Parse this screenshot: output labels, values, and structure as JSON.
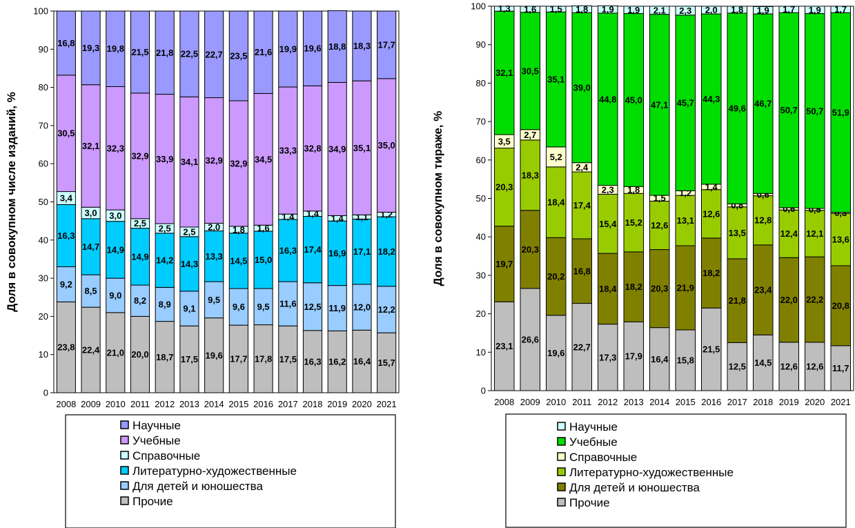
{
  "chart_data": [
    {
      "type": "bar",
      "stacked": true,
      "ylabel": "Доля в совокупном числе изданий, %",
      "ylim": [
        0,
        100
      ],
      "yticks": [
        0,
        10,
        20,
        30,
        40,
        50,
        60,
        70,
        80,
        90,
        100
      ],
      "categories": [
        "2008",
        "2009",
        "2010",
        "2011",
        "2012",
        "2013",
        "2014",
        "2015",
        "2016",
        "2017",
        "2018",
        "2019",
        "2020",
        "2021"
      ],
      "legend_placement": "bottom",
      "series": [
        {
          "name": "Прочие",
          "color": "#BEBEBE",
          "values": [
            23.8,
            22.4,
            21.0,
            20.0,
            18.7,
            17.5,
            19.6,
            17.7,
            17.8,
            17.5,
            16.3,
            16.2,
            16.4,
            15.7
          ]
        },
        {
          "name": "Для детей и юношества",
          "color": "#99CCFF",
          "values": [
            9.2,
            8.5,
            9.0,
            8.2,
            8.9,
            9.1,
            9.5,
            9.6,
            9.5,
            11.6,
            12.5,
            11.9,
            12.0,
            12.2
          ]
        },
        {
          "name": "Литературно-художественные",
          "color": "#00CCFF",
          "values": [
            16.3,
            14.7,
            14.9,
            14.9,
            14.2,
            14.3,
            13.3,
            14.5,
            15.0,
            16.3,
            17.4,
            16.9,
            17.1,
            18.2
          ]
        },
        {
          "name": "Справочные",
          "color": "#CCFFFF",
          "values": [
            3.4,
            3.0,
            3.0,
            2.5,
            2.5,
            2.5,
            2.0,
            1.8,
            1.6,
            1.4,
            1.4,
            1.4,
            1.1,
            1.2
          ]
        },
        {
          "name": "Учебные",
          "color": "#CC99FF",
          "values": [
            30.5,
            32.1,
            32.3,
            32.9,
            33.9,
            34.1,
            32.9,
            32.9,
            34.5,
            33.3,
            32.8,
            34.9,
            35.1,
            35.0
          ]
        },
        {
          "name": "Научные",
          "color": "#9999FF",
          "values": [
            16.8,
            19.3,
            19.8,
            21.5,
            21.8,
            22.5,
            22.7,
            23.5,
            21.6,
            19.9,
            19.6,
            18.8,
            18.3,
            17.7
          ]
        }
      ]
    },
    {
      "type": "bar",
      "stacked": true,
      "ylabel": "Доля в совокупном тираже, %",
      "ylim": [
        0,
        100
      ],
      "yticks": [
        0,
        10,
        20,
        30,
        40,
        50,
        60,
        70,
        80,
        90,
        100
      ],
      "categories": [
        "2008",
        "2009",
        "2010",
        "2011",
        "2012",
        "2013",
        "2014",
        "2015",
        "2016",
        "2017",
        "2018",
        "2019",
        "2020",
        "2021"
      ],
      "legend_placement": "bottom",
      "series": [
        {
          "name": "Прочие",
          "color": "#BEBEBE",
          "values": [
            23.1,
            26.6,
            19.6,
            22.7,
            17.3,
            17.9,
            16.4,
            15.8,
            21.5,
            12.5,
            14.5,
            12.6,
            12.6,
            11.7
          ]
        },
        {
          "name": "Для детей и юношества",
          "color": "#808000",
          "values": [
            19.7,
            20.3,
            20.2,
            16.8,
            18.4,
            18.2,
            20.3,
            21.9,
            18.2,
            21.8,
            23.4,
            22.0,
            22.2,
            20.8
          ]
        },
        {
          "name": "Литературно-художественные",
          "color": "#99CC00",
          "values": [
            20.3,
            18.3,
            18.4,
            17.4,
            15.4,
            15.2,
            12.6,
            13.1,
            12.6,
            13.5,
            12.8,
            12.4,
            12.1,
            13.6
          ]
        },
        {
          "name": "Справочные",
          "color": "#FFFFCC",
          "values": [
            3.5,
            2.7,
            5.2,
            2.4,
            2.3,
            1.8,
            1.5,
            1.2,
            1.4,
            0.8,
            0.6,
            0.6,
            0.5,
            0.3
          ]
        },
        {
          "name": "Учебные",
          "color": "#00DD00",
          "values": [
            32.1,
            30.5,
            35.1,
            39.0,
            44.8,
            45.0,
            47.1,
            45.7,
            44.3,
            49.6,
            46.7,
            50.7,
            50.7,
            51.9
          ]
        },
        {
          "name": "Научные",
          "color": "#CCFFFF",
          "values": [
            1.3,
            1.6,
            1.5,
            1.8,
            1.9,
            1.9,
            2.1,
            2.3,
            2.0,
            1.8,
            1.9,
            1.7,
            1.9,
            1.7
          ]
        }
      ]
    }
  ]
}
